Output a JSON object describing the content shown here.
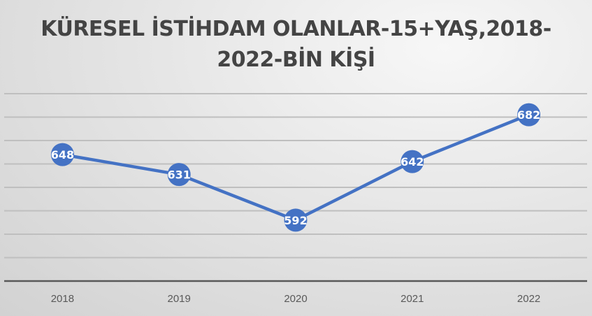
{
  "chart_data": {
    "type": "line",
    "title_line1": "KÜRESEL İSTİHDAM OLANLAR-15+YAŞ,2018-",
    "title_line2": "2022-BİN KİŞİ",
    "categories": [
      "2018",
      "2019",
      "2020",
      "2021",
      "2022"
    ],
    "series": [
      {
        "values": [
          648,
          631,
          592,
          642,
          682
        ]
      }
    ],
    "data_labels": [
      "648",
      "631",
      "592",
      "642",
      "682"
    ],
    "ylim": [
      540,
      700
    ],
    "ytick_step": 20,
    "grid": true,
    "y_tick_labels_shown": false,
    "legend": "none",
    "colors": {
      "line": "#4472C4",
      "grid": "#bfbfbf",
      "axis": "#595959",
      "label": "#ffffff"
    }
  }
}
